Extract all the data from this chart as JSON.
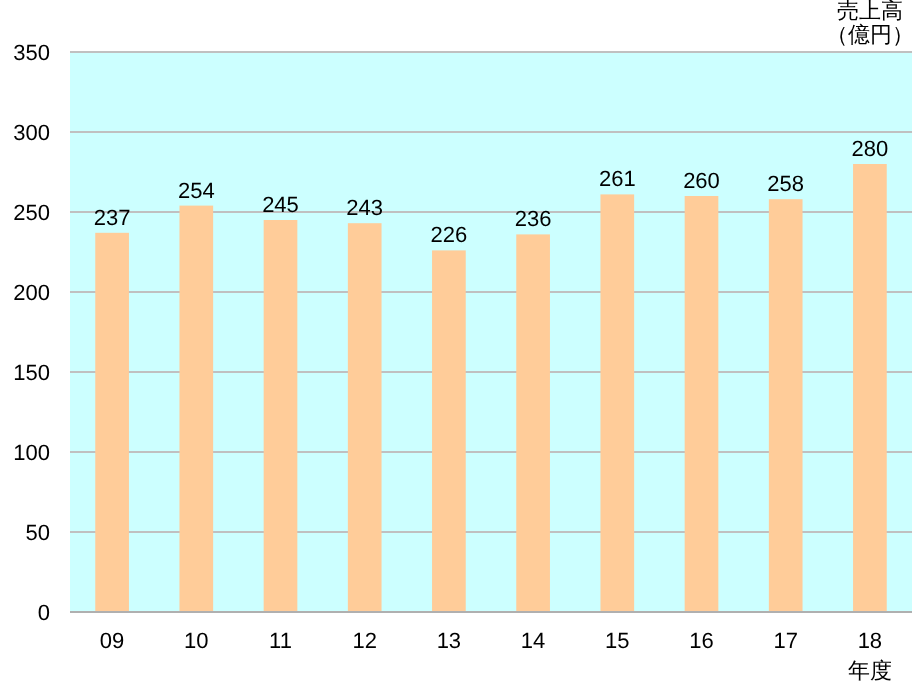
{
  "chart_data": {
    "type": "bar",
    "categories": [
      "09",
      "10",
      "11",
      "12",
      "13",
      "14",
      "15",
      "16",
      "17",
      "18"
    ],
    "values": [
      237,
      254,
      245,
      243,
      226,
      236,
      261,
      260,
      258,
      280
    ],
    "color": "#ffcc99",
    "ylim": [
      0,
      350
    ],
    "yticks": [
      0,
      50,
      100,
      150,
      200,
      250,
      300,
      350
    ],
    "grid": "y",
    "data_labels": true,
    "ylabel": "売上高（億円）",
    "xlabel": "年度"
  }
}
